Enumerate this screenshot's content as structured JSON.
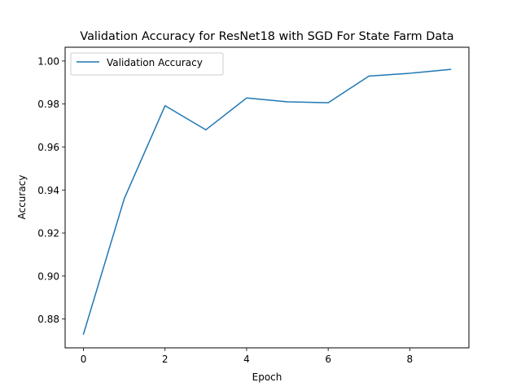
{
  "chart_data": {
    "type": "line",
    "title": "Validation Accuracy for ResNet18 with SGD For State Farm Data",
    "xlabel": "Epoch",
    "ylabel": "Accuracy",
    "xlim": [
      -0.45,
      9.45
    ],
    "ylim": [
      0.8666,
      1.0064
    ],
    "xticks": [
      0,
      2,
      4,
      6,
      8
    ],
    "xtick_labels": [
      "0",
      "2",
      "4",
      "6",
      "8"
    ],
    "yticks": [
      0.88,
      0.9,
      0.92,
      0.94,
      0.96,
      0.98,
      1.0
    ],
    "ytick_labels": [
      "0.88",
      "0.90",
      "0.92",
      "0.94",
      "0.96",
      "0.98",
      "1.00"
    ],
    "grid": false,
    "legend_position": "upper-left",
    "series": [
      {
        "name": "Validation Accuracy",
        "color": "#1f77b4",
        "x": [
          0,
          1,
          2,
          3,
          4,
          5,
          6,
          7,
          8,
          9
        ],
        "y": [
          0.873,
          0.936,
          0.9792,
          0.968,
          0.9828,
          0.981,
          0.9806,
          0.993,
          0.9943,
          0.9961
        ]
      }
    ]
  }
}
